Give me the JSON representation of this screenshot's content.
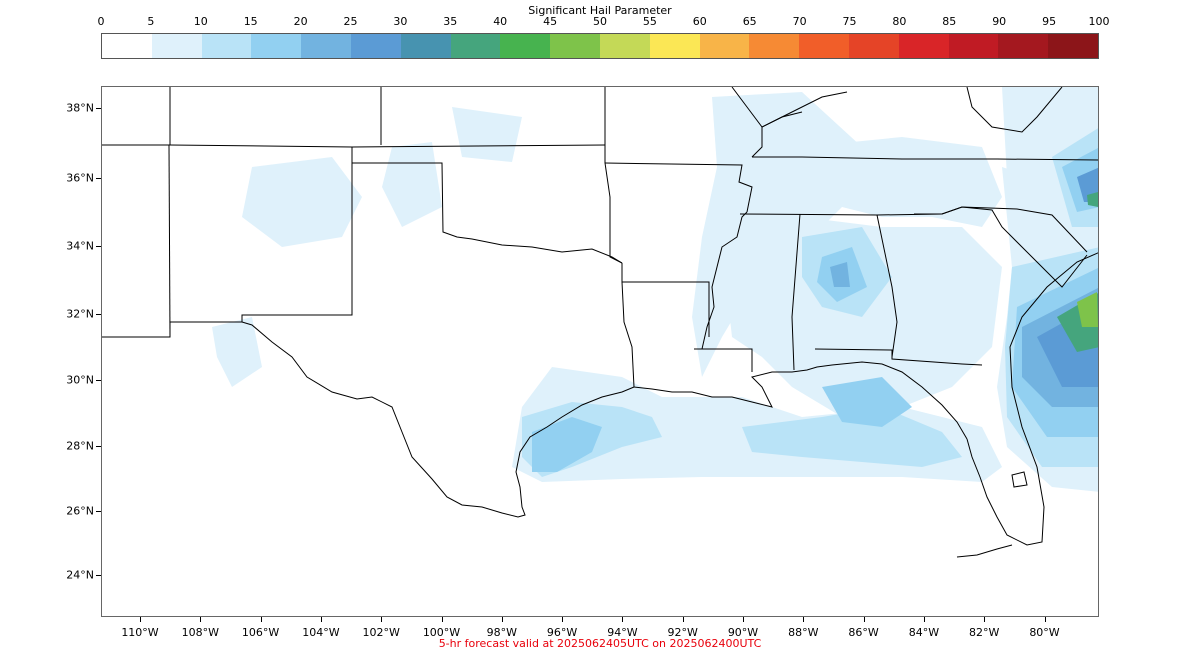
{
  "colorbar": {
    "title": "Significant Hail Parameter",
    "tick_labels": [
      "0",
      "5",
      "10",
      "15",
      "20",
      "25",
      "30",
      "35",
      "40",
      "45",
      "50",
      "55",
      "60",
      "65",
      "70",
      "75",
      "80",
      "85",
      "90",
      "95",
      "100"
    ],
    "colors": [
      "#ffffff",
      "#dff1fb",
      "#b9e3f7",
      "#92d0f1",
      "#72b3e0",
      "#5b9bd5",
      "#4793b0",
      "#45a57d",
      "#47b34f",
      "#7ec34a",
      "#c4d957",
      "#fbe755",
      "#f8b448",
      "#f68a34",
      "#f15e29",
      "#e54427",
      "#d92528",
      "#c01b24",
      "#a4181f",
      "#8c1519"
    ]
  },
  "map": {
    "lat_labels": [
      "38°N",
      "36°N",
      "34°N",
      "32°N",
      "30°N",
      "28°N",
      "26°N",
      "24°N"
    ],
    "lon_labels": [
      "110°W",
      "108°W",
      "106°W",
      "104°W",
      "102°W",
      "100°W",
      "98°W",
      "96°W",
      "94°W",
      "92°W",
      "90°W",
      "88°W",
      "86°W",
      "84°W",
      "82°W",
      "80°W"
    ],
    "field_colors": {
      "level1": "#dff1fb",
      "level2": "#b9e3f7",
      "level3": "#92d0f1",
      "level4": "#72b3e0",
      "level5": "#5b9bd5",
      "level6": "#45a57d",
      "level7": "#7ec34a"
    }
  },
  "footer": {
    "forecast_text": "5-hr forecast valid at 2025062405UTC on 2025062400UTC",
    "forecast_color": "#e8000b"
  }
}
